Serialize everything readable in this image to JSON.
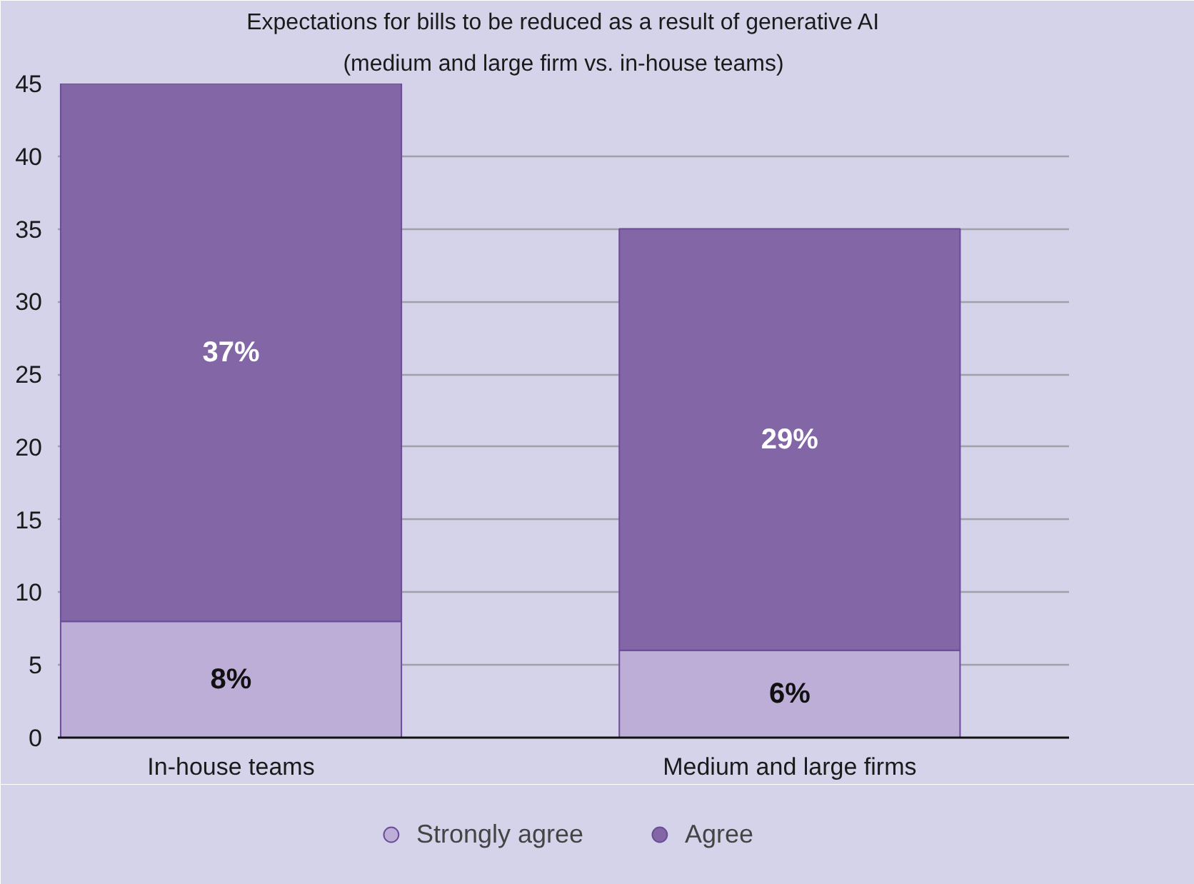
{
  "chart_data": {
    "type": "bar",
    "stacked": true,
    "title": "Expectations for bills to be reduced as a result of generative AI",
    "subtitle": "(medium and large firm vs. in-house teams)",
    "categories": [
      "In-house teams",
      "Medium and large firms"
    ],
    "series": [
      {
        "name": "Strongly agree",
        "color": "#bcaed6",
        "values": [
          8,
          6
        ],
        "value_labels": [
          "8%",
          "6%"
        ]
      },
      {
        "name": "Agree",
        "color": "#8266a6",
        "values": [
          37,
          29
        ],
        "value_labels": [
          "37%",
          "29%"
        ]
      }
    ],
    "ylim": [
      0,
      45
    ],
    "yticks": [
      0,
      5,
      10,
      15,
      20,
      25,
      30,
      35,
      40,
      45
    ],
    "grid": "y",
    "legend": "bottom"
  }
}
